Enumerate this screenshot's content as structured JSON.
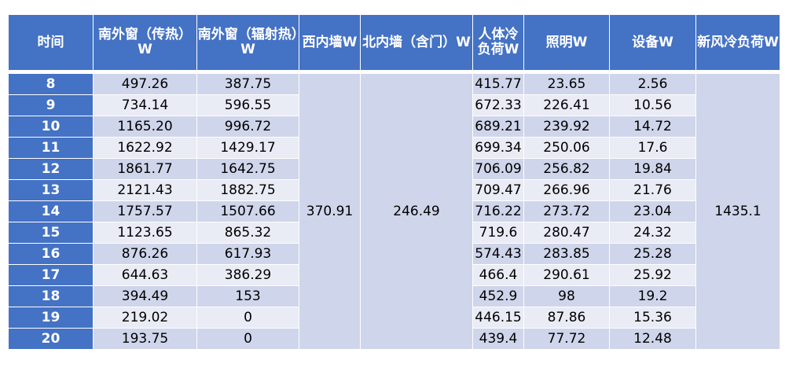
{
  "headers": [
    "时间",
    "南外窗（传热）W",
    "南外窗（辐射热）W",
    "西内墙W",
    "北内墙（含门）W",
    "人体冷负荷W",
    "照明W",
    "设备W",
    "新风冷负荷W"
  ],
  "merged": {
    "west_wall": "370.91",
    "north_wall": "246.49",
    "fresh_air": "1435.1"
  },
  "rows": [
    {
      "time": "8",
      "south_conduction": "497.26",
      "south_radiation": "387.75",
      "people": "415.77",
      "lighting": "23.65",
      "equipment": "2.56"
    },
    {
      "time": "9",
      "south_conduction": "734.14",
      "south_radiation": "596.55",
      "people": "672.33",
      "lighting": "226.41",
      "equipment": "10.56"
    },
    {
      "time": "10",
      "south_conduction": "1165.20",
      "south_radiation": "996.72",
      "people": "689.21",
      "lighting": "239.92",
      "equipment": "14.72"
    },
    {
      "time": "11",
      "south_conduction": "1622.92",
      "south_radiation": "1429.17",
      "people": "699.34",
      "lighting": "250.06",
      "equipment": "17.6"
    },
    {
      "time": "12",
      "south_conduction": "1861.77",
      "south_radiation": "1642.75",
      "people": "706.09",
      "lighting": "256.82",
      "equipment": "19.84"
    },
    {
      "time": "13",
      "south_conduction": "2121.43",
      "south_radiation": "1882.75",
      "people": "709.47",
      "lighting": "266.96",
      "equipment": "21.76"
    },
    {
      "time": "14",
      "south_conduction": "1757.57",
      "south_radiation": "1507.66",
      "people": "716.22",
      "lighting": "273.72",
      "equipment": "23.04"
    },
    {
      "time": "15",
      "south_conduction": "1123.65",
      "south_radiation": "865.32",
      "people": "719.6",
      "lighting": "280.47",
      "equipment": "24.32"
    },
    {
      "time": "16",
      "south_conduction": "876.26",
      "south_radiation": "617.93",
      "people": "574.43",
      "lighting": "283.85",
      "equipment": "25.28"
    },
    {
      "time": "17",
      "south_conduction": "644.63",
      "south_radiation": "386.29",
      "people": "466.4",
      "lighting": "290.61",
      "equipment": "25.92"
    },
    {
      "time": "18",
      "south_conduction": "394.49",
      "south_radiation": "153",
      "people": "452.9",
      "lighting": "98",
      "equipment": "19.2"
    },
    {
      "time": "19",
      "south_conduction": "219.02",
      "south_radiation": "0",
      "people": "446.15",
      "lighting": "87.86",
      "equipment": "15.36"
    },
    {
      "time": "20",
      "south_conduction": "193.75",
      "south_radiation": "0",
      "people": "439.4",
      "lighting": "77.72",
      "equipment": "12.48"
    }
  ]
}
